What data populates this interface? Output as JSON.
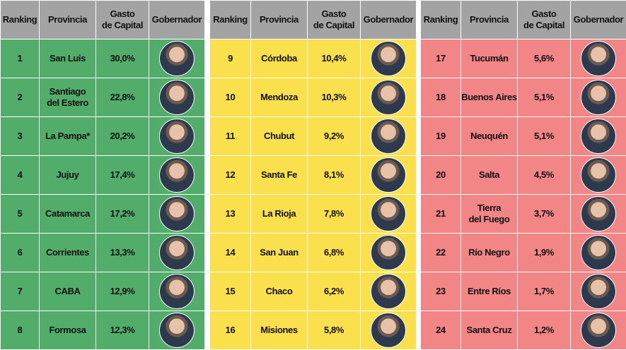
{
  "tables": [
    {
      "headers": [
        "Ranking",
        "Provincia",
        "Gasto\nde Capital",
        "Gobernador"
      ],
      "rows": [
        {
          "ranking": 1,
          "provincia": "San Luis",
          "gasto": "30,0%"
        },
        {
          "ranking": 2,
          "provincia": "Santiago\ndel Estero",
          "gasto": "22,8%"
        },
        {
          "ranking": 3,
          "provincia": "La Pampa*",
          "gasto": "20,2%"
        },
        {
          "ranking": 4,
          "provincia": "Jujuy",
          "gasto": "17,4%"
        },
        {
          "ranking": 5,
          "provincia": "Catamarca",
          "gasto": "17,2%"
        },
        {
          "ranking": 6,
          "provincia": "Corrientes",
          "gasto": "13,3%"
        },
        {
          "ranking": 7,
          "provincia": "CABA",
          "gasto": "12,9%"
        },
        {
          "ranking": 8,
          "provincia": "Formosa",
          "gasto": "12,3%"
        }
      ]
    },
    {
      "headers": [
        "Ranking",
        "Provincia",
        "Gasto\nde Capital",
        "Gobernador"
      ],
      "rows": [
        {
          "ranking": 9,
          "provincia": "Córdoba",
          "gasto": "10,4%"
        },
        {
          "ranking": 10,
          "provincia": "Mendoza",
          "gasto": "10,3%"
        },
        {
          "ranking": 11,
          "provincia": "Chubut",
          "gasto": "9,2%"
        },
        {
          "ranking": 12,
          "provincia": "Santa Fe",
          "gasto": "8,1%"
        },
        {
          "ranking": 13,
          "provincia": "La Rioja",
          "gasto": "7,8%"
        },
        {
          "ranking": 14,
          "provincia": "San Juan",
          "gasto": "6,8%"
        },
        {
          "ranking": 15,
          "provincia": "Chaco",
          "gasto": "6,2%"
        },
        {
          "ranking": 16,
          "provincia": "Misiones",
          "gasto": "5,8%"
        }
      ]
    },
    {
      "headers": [
        "Ranking",
        "Provincia",
        "Gasto\nde Capital",
        "Gobernador"
      ],
      "rows": [
        {
          "ranking": 17,
          "provincia": "Tucumán",
          "gasto": "5,6%"
        },
        {
          "ranking": 18,
          "provincia": "Buenos Aires",
          "gasto": "5,1%"
        },
        {
          "ranking": 19,
          "provincia": "Neuquén",
          "gasto": "5,1%"
        },
        {
          "ranking": 20,
          "provincia": "Salta",
          "gasto": "4,5%"
        },
        {
          "ranking": 21,
          "provincia": "Tierra\ndel Fuego",
          "gasto": "3,7%"
        },
        {
          "ranking": 22,
          "provincia": "Río Negro",
          "gasto": "1,9%"
        },
        {
          "ranking": 23,
          "provincia": "Entre Ríos",
          "gasto": "1,7%"
        },
        {
          "ranking": 24,
          "provincia": "Santa Cruz",
          "gasto": "1,2%"
        }
      ]
    }
  ]
}
